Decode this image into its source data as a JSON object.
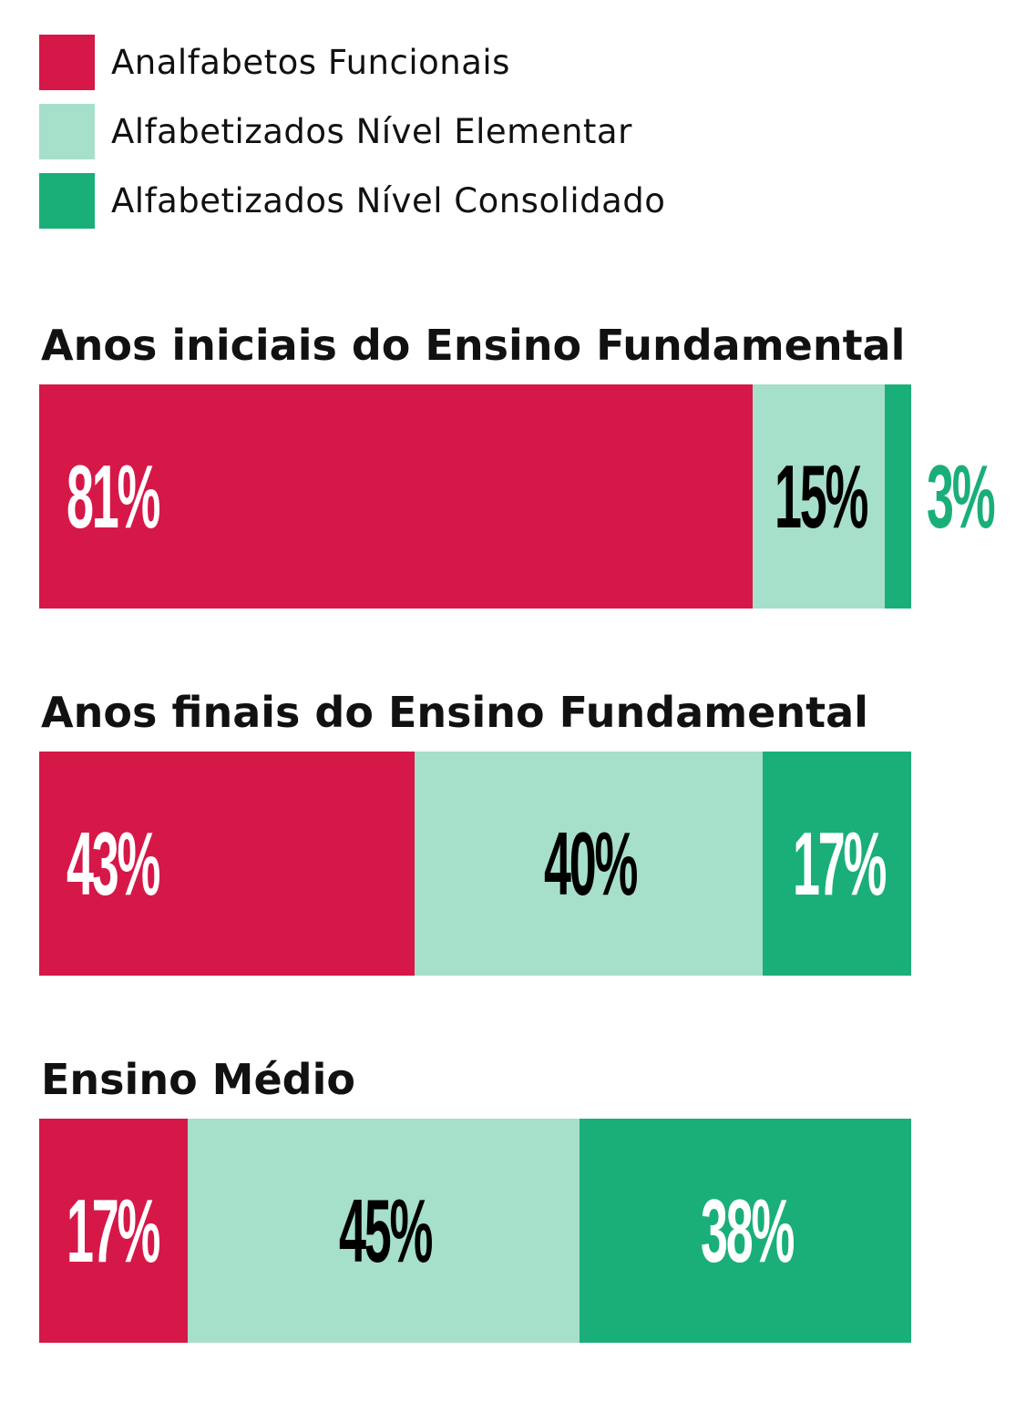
{
  "chart_data": {
    "type": "bar",
    "orientation": "horizontal-stacked",
    "legend": [
      {
        "name": "Analfabetos Funcionais",
        "color": "#D61848"
      },
      {
        "name": "Alfabetizados Nível Elementar",
        "color": "#A6DFCA"
      },
      {
        "name": "Alfabetizados Nível Consolidado",
        "color": "#1AAF79"
      }
    ],
    "legend_position": "top-left",
    "unit": "%",
    "categories": [
      "Anos iniciais do Ensino Fundamental",
      "Anos finais do Ensino Fundamental",
      "Ensino Médio"
    ],
    "series": [
      {
        "name": "Analfabetos Funcionais",
        "values": [
          81,
          43,
          17
        ]
      },
      {
        "name": "Alfabetizados Nível Elementar",
        "values": [
          15,
          40,
          45
        ]
      },
      {
        "name": "Alfabetizados Nível Consolidado",
        "values": [
          3,
          17,
          38
        ]
      }
    ],
    "label_colors": [
      "#FFFFFF",
      "#000000",
      "#FFFFFF"
    ],
    "outside_label_color": "#1AAF79"
  }
}
